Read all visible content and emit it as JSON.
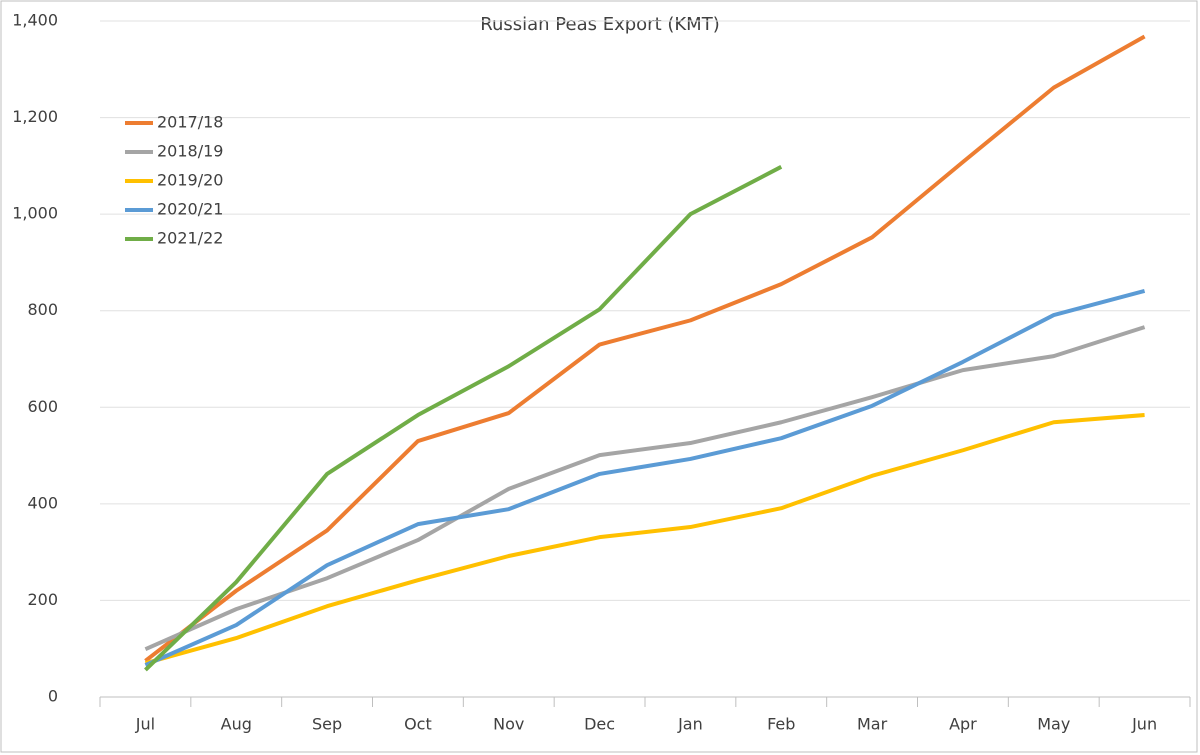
{
  "chart_data": {
    "type": "line",
    "title": "Russian Peas Export (KMT)",
    "categories": [
      "Jul",
      "Aug",
      "Sep",
      "Oct",
      "Nov",
      "Dec",
      "Jan",
      "Feb",
      "Mar",
      "Apr",
      "May",
      "Jun"
    ],
    "series": [
      {
        "name": "2017/18",
        "color": "#ed7d31",
        "values": [
          75,
          220,
          345,
          530,
          588,
          730,
          780,
          855,
          952,
          1108,
          1262,
          1368
        ]
      },
      {
        "name": "2018/19",
        "color": "#a5a5a5",
        "values": [
          99,
          182,
          246,
          325,
          431,
          501,
          526,
          569,
          621,
          677,
          706,
          766
        ]
      },
      {
        "name": "2019/20",
        "color": "#ffc000",
        "values": [
          70,
          122,
          188,
          242,
          292,
          331,
          352,
          391,
          458,
          511,
          569,
          584
        ]
      },
      {
        "name": "2020/21",
        "color": "#5b9bd5",
        "values": [
          66,
          149,
          273,
          358,
          389,
          462,
          493,
          536,
          603,
          694,
          791,
          841
        ]
      },
      {
        "name": "2021/22",
        "color": "#70ad47",
        "values": [
          56,
          238,
          462,
          584,
          685,
          803,
          1000,
          1098,
          null,
          null,
          null,
          null
        ]
      }
    ],
    "ylim": [
      0,
      1400
    ],
    "yticks": [
      0,
      200,
      400,
      600,
      800,
      {
        "value": 1000,
        "label": "1,000"
      },
      {
        "value": 1200,
        "label": "1,200"
      },
      {
        "value": 1400,
        "label": "1,400"
      }
    ],
    "grid": true,
    "legend": "top-left"
  }
}
